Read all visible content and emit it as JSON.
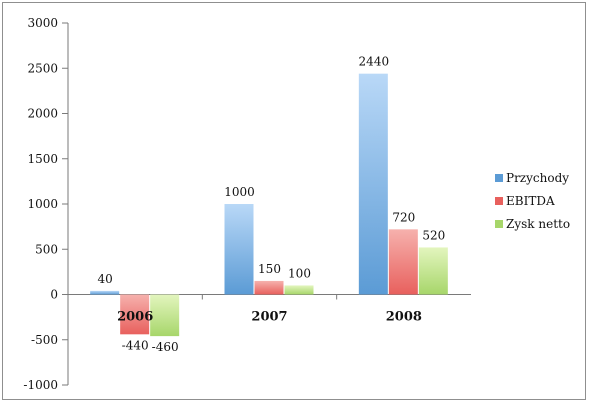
{
  "chart_data": {
    "type": "bar",
    "title": "",
    "xlabel": "",
    "ylabel": "",
    "categories": [
      "2006",
      "2007",
      "2008"
    ],
    "series": [
      {
        "name": "Przychody",
        "values": [
          40,
          1000,
          2440
        ]
      },
      {
        "name": "EBITDA",
        "values": [
          -440,
          150,
          720
        ]
      },
      {
        "name": "Zysk netto",
        "values": [
          -460,
          100,
          520
        ]
      }
    ],
    "data_labels": [
      [
        "40",
        "1000",
        "2440"
      ],
      [
        "-440",
        "150",
        "720"
      ],
      [
        "-460",
        "100",
        "520"
      ]
    ],
    "ylim": [
      -1000,
      3000
    ],
    "yticks": [
      -1000,
      -500,
      0,
      500,
      1000,
      1500,
      2000,
      2500,
      3000
    ],
    "grid": false,
    "legend_position": "right",
    "colors": {
      "series": [
        "#5b9bd5",
        "#e8605d",
        "#a7d66a"
      ],
      "series_light": [
        "#b9d8f7",
        "#f6b1ad",
        "#e3f5be"
      ],
      "axis": "#7a7a7a"
    }
  }
}
